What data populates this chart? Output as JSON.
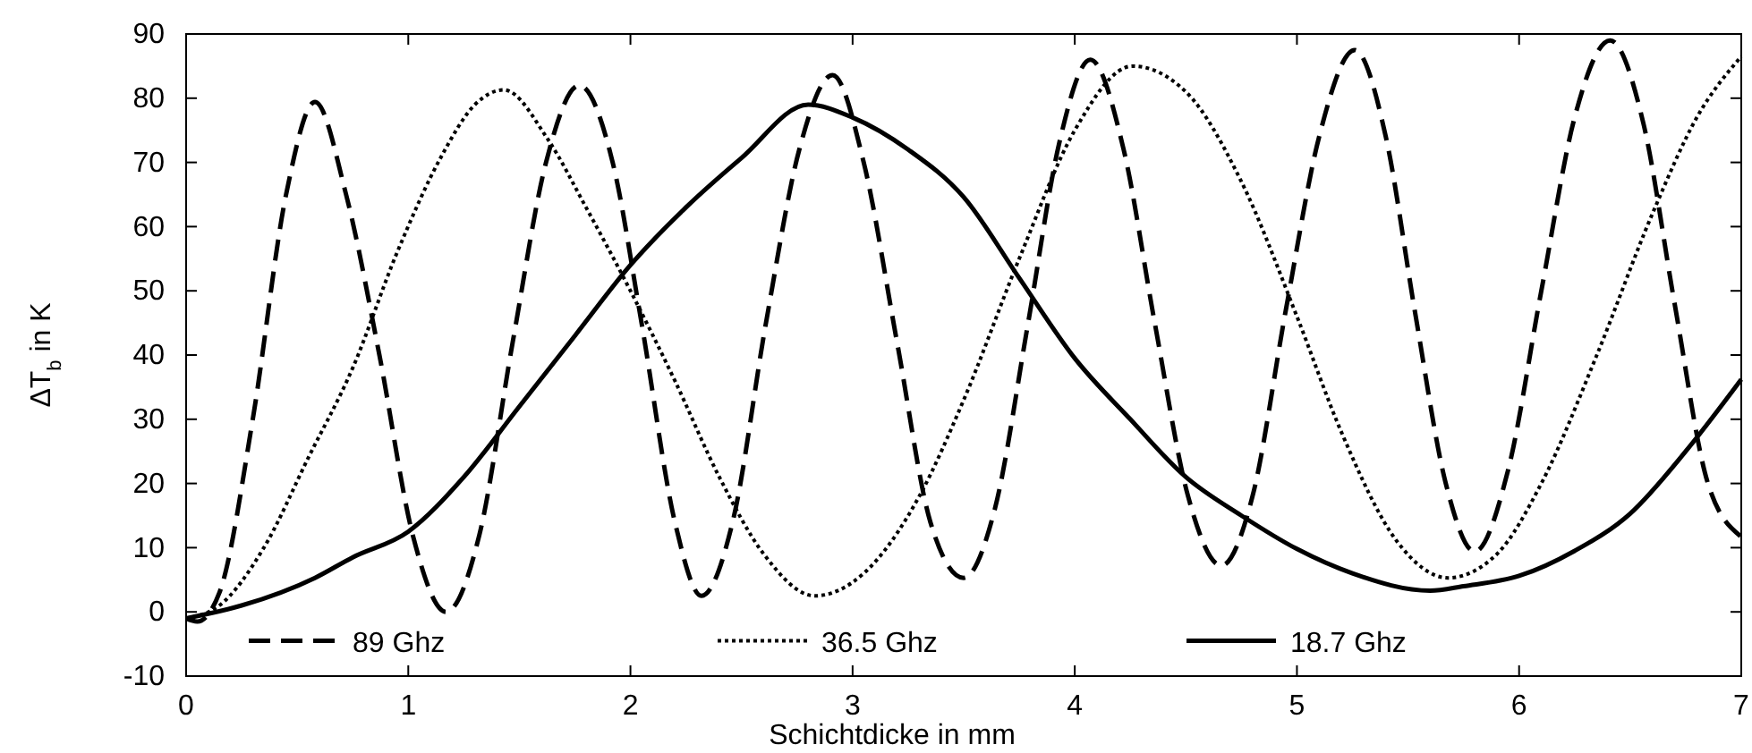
{
  "chart_data": {
    "type": "line",
    "xlabel": "Schichtdicke in mm",
    "ylabel": "ΔT$_{b}$ in K",
    "xlim": [
      0,
      7
    ],
    "xticks": [
      0,
      1,
      2,
      3,
      4,
      5,
      6,
      7
    ],
    "ylim": [
      -10,
      90
    ],
    "yticks": [
      -10,
      0,
      10,
      20,
      30,
      40,
      50,
      60,
      70,
      80,
      90
    ],
    "grid": false,
    "legend": "bottom",
    "marker": "none",
    "series": [
      {
        "name": "89 Ghz",
        "color": "#000000",
        "line_style": "dashed",
        "x": [
          0,
          0.05,
          0.15,
          0.3,
          0.45,
          0.58,
          0.72,
          0.87,
          1.02,
          1.17,
          1.32,
          1.47,
          1.62,
          1.77,
          1.92,
          2.05,
          2.2,
          2.32,
          2.46,
          2.61,
          2.76,
          2.91,
          3.05,
          3.2,
          3.35,
          3.5,
          3.64,
          3.79,
          3.93,
          4.07,
          4.22,
          4.36,
          4.51,
          4.66,
          4.8,
          4.95,
          5.1,
          5.26,
          5.4,
          5.53,
          5.67,
          5.8,
          5.95,
          6.1,
          6.25,
          6.41,
          6.56,
          6.7,
          6.85,
          7
        ],
        "values": [
          -1,
          -1.5,
          3,
          30,
          65,
          79.4,
          65,
          40,
          12,
          0,
          12,
          42,
          70,
          82,
          70,
          45,
          14,
          2.5,
          14,
          45,
          72,
          83.6,
          70,
          42,
          14,
          5.3,
          16,
          45,
          73,
          86,
          72,
          45,
          18,
          7.2,
          18,
          47,
          74,
          87.5,
          74,
          47,
          20,
          9.4,
          22,
          50,
          77,
          89,
          76,
          48,
          20,
          11.7
        ]
      },
      {
        "name": "36.5 Ghz",
        "color": "#000000",
        "line_style": "dotted",
        "x": [
          0,
          0.15,
          0.35,
          0.55,
          0.75,
          0.95,
          1.15,
          1.3,
          1.43,
          1.63,
          1.8,
          2.0,
          2.2,
          2.4,
          2.6,
          2.83,
          3.05,
          3.3,
          3.5,
          3.75,
          4.0,
          4.26,
          4.5,
          4.75,
          5.0,
          5.2,
          5.45,
          5.68,
          5.9,
          6.1,
          6.35,
          6.6,
          6.8,
          7
        ],
        "values": [
          -1,
          1,
          10,
          24,
          38,
          56,
          71,
          79,
          81.3,
          73.5,
          63,
          50,
          36,
          21,
          9,
          2.5,
          6,
          18,
          33,
          55,
          75,
          85,
          81,
          67,
          46,
          28,
          11,
          5.3,
          9,
          20,
          40,
          62,
          77,
          86.5
        ]
      },
      {
        "name": "18.7 Ghz",
        "color": "#000000",
        "line_style": "solid",
        "x": [
          0,
          0.25,
          0.58,
          0.75,
          1.0,
          1.25,
          1.5,
          1.75,
          2.0,
          2.25,
          2.5,
          2.8,
          3.0,
          3.25,
          3.5,
          3.75,
          4.0,
          4.25,
          4.5,
          4.75,
          5.0,
          5.25,
          5.6,
          5.75,
          6.0,
          6.25,
          6.5,
          6.75,
          7
        ],
        "values": [
          -1,
          1,
          5.3,
          8.5,
          12.5,
          21,
          32,
          43,
          54,
          63,
          70.7,
          79,
          77,
          72,
          64.6,
          52,
          39.5,
          30,
          21,
          15,
          9.8,
          6,
          3.3,
          4,
          5.6,
          9.5,
          15.3,
          25,
          36.2
        ]
      }
    ]
  }
}
